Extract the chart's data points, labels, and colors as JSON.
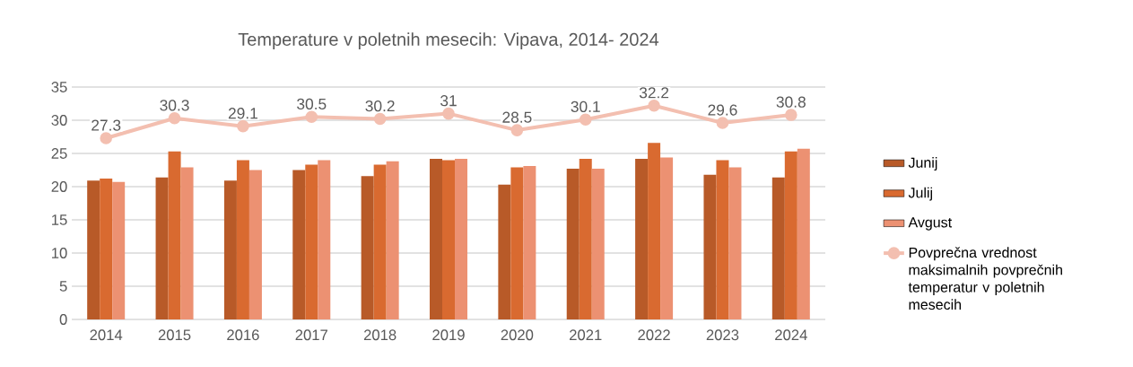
{
  "chart_data": {
    "type": "bar",
    "title": "Temperature v poletnih mesecih: Vipava, 2014- 2024",
    "categories": [
      "2014",
      "2015",
      "2016",
      "2017",
      "2018",
      "2019",
      "2020",
      "2021",
      "2022",
      "2023",
      "2024"
    ],
    "series": [
      {
        "name": "Junij",
        "color": "#b85a28",
        "values": [
          20.9,
          21.4,
          20.9,
          22.5,
          21.6,
          24.2,
          20.3,
          22.7,
          24.2,
          21.8,
          21.4
        ]
      },
      {
        "name": "Julij",
        "color": "#d96a30",
        "values": [
          21.2,
          25.3,
          24.0,
          23.3,
          23.3,
          24.0,
          22.9,
          24.2,
          26.6,
          24.0,
          25.3
        ]
      },
      {
        "name": "Avgust",
        "color": "#ec9172",
        "values": [
          20.7,
          22.9,
          22.5,
          24.0,
          23.8,
          24.2,
          23.1,
          22.7,
          24.4,
          22.9,
          25.7
        ]
      },
      {
        "name": "Povprečna vrednost maksimalnih povprečnih temperatur v poletnih mesecih",
        "type": "line",
        "marker": "circle",
        "color": "#f3bfb0",
        "values": [
          27.3,
          30.3,
          29.1,
          30.5,
          30.2,
          31,
          28.5,
          30.1,
          32.2,
          29.6,
          30.8
        ],
        "value_labels": [
          "27.3",
          "30.3",
          "29.1",
          "30.5",
          "30.2",
          "31",
          "28.5",
          "30.1",
          "32.2",
          "29.6",
          "30.8"
        ]
      }
    ],
    "ylim": [
      0,
      35
    ],
    "yticks": [
      0,
      5,
      10,
      15,
      20,
      25,
      30,
      35
    ],
    "grid": "y",
    "legend": "right"
  }
}
